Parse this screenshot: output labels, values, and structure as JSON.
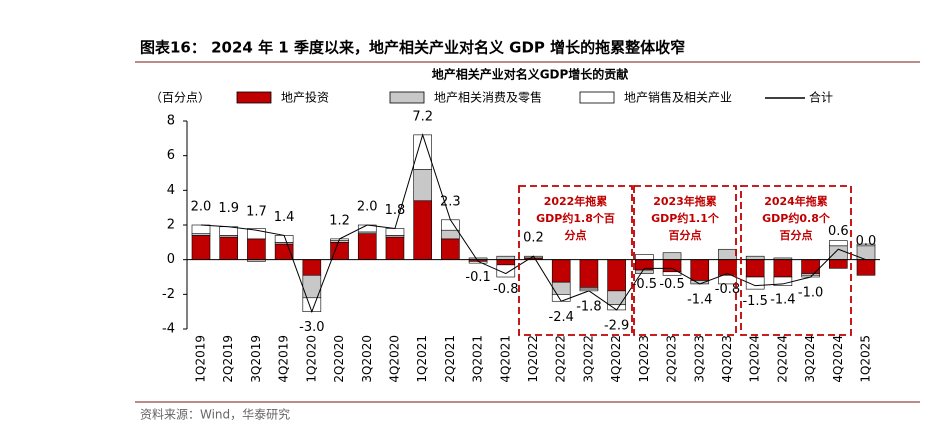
{
  "header": {
    "title": "图表16： 2024 年 1 季度以来，地产相关产业对名义 GDP 增长的拖累整体收窄"
  },
  "chart_data": {
    "type": "bar",
    "title": "地产相关产业对名义GDP增长的贡献",
    "y_label": "（百分点）",
    "categories": [
      "1Q2019",
      "2Q2019",
      "3Q2019",
      "4Q2019",
      "1Q2020",
      "2Q2020",
      "3Q2020",
      "4Q2020",
      "1Q2021",
      "2Q2021",
      "3Q2021",
      "4Q2021",
      "1Q2022",
      "2Q2022",
      "3Q2022",
      "4Q2022",
      "1Q2023",
      "2Q2023",
      "3Q2023",
      "4Q2023",
      "1Q2024",
      "2Q2024",
      "3Q2024",
      "4Q2024",
      "1Q2025"
    ],
    "series": [
      {
        "name": "地产投资",
        "color": "#c00000",
        "values": [
          1.4,
          1.3,
          1.2,
          0.9,
          -0.9,
          1.0,
          1.5,
          1.3,
          3.4,
          1.2,
          -0.1,
          -0.3,
          0.1,
          -1.3,
          -1.6,
          -1.8,
          -0.6,
          -0.7,
          -1.2,
          -0.9,
          -1.0,
          -1.0,
          -0.8,
          -0.5,
          -0.9
        ]
      },
      {
        "name": "地产相关消费及零售",
        "color": "#c8c8c8",
        "values": [
          0.1,
          0.1,
          -0.1,
          0.1,
          -1.3,
          0.1,
          0.1,
          0.1,
          1.8,
          0.5,
          0.1,
          0.2,
          0.1,
          -0.7,
          -0.1,
          -0.8,
          -0.2,
          0.4,
          -0.2,
          0.6,
          0.2,
          0.1,
          -0.1,
          0.8,
          0.8
        ]
      },
      {
        "name": "地产销售及相关产业",
        "color": "#ffffff",
        "values": [
          0.5,
          0.5,
          0.6,
          0.4,
          -0.8,
          0.1,
          0.4,
          0.4,
          2.0,
          0.6,
          -0.1,
          -0.7,
          0.0,
          -0.4,
          -0.1,
          -0.3,
          0.3,
          -0.2,
          0.0,
          -0.5,
          -0.7,
          -0.5,
          -0.1,
          0.3,
          0.1
        ]
      },
      {
        "name": "合计",
        "type": "line",
        "color": "#000000",
        "values": [
          2.0,
          1.9,
          1.7,
          1.4,
          -3.0,
          1.2,
          2.0,
          1.8,
          7.2,
          2.3,
          -0.1,
          -0.8,
          0.2,
          -2.4,
          -1.8,
          -2.9,
          -0.5,
          -0.5,
          -1.4,
          -0.8,
          -1.5,
          -1.4,
          -1.0,
          0.6,
          0.0
        ],
        "value_labels": [
          "2.0",
          "1.9",
          "1.7",
          "1.4",
          "-3.0",
          "1.2",
          "2.0",
          "1.8",
          "7.2",
          "2.3",
          "-0.1",
          "-0.8",
          "0.2",
          "-2.4",
          "-1.8",
          "-2.9",
          "-0.5",
          "-0.5",
          "-1.4",
          "-0.8",
          "-1.5",
          "-1.4",
          "-1.0",
          "0.6",
          "0.0"
        ]
      }
    ],
    "ylim": [
      -4,
      8
    ],
    "yticks": [
      -4,
      -2,
      0,
      2,
      4,
      6,
      8
    ],
    "annotations": [
      {
        "lines": [
          "2022年拖累",
          "GDP约1.8个百",
          "分点"
        ],
        "color": "#c00000"
      },
      {
        "lines": [
          "2023年拖累",
          "GDP约1.1个",
          "百分点"
        ],
        "color": "#c00000"
      },
      {
        "lines": [
          "2024年拖累",
          "GDP约0.8个",
          "百分点"
        ],
        "color": "#c00000"
      }
    ]
  },
  "source": "资料来源：Wind，华泰研究"
}
